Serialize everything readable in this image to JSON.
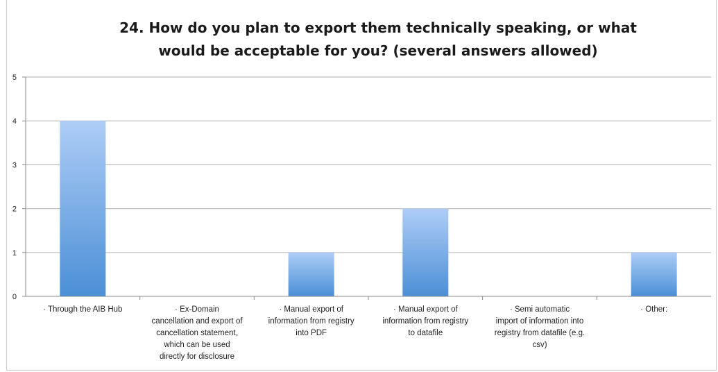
{
  "chart_data": {
    "type": "bar",
    "title_lines": [
      "24.  How do you plan to export them technically speaking, or what",
      "would be acceptable for you? (several answers allowed)"
    ],
    "categories": [
      [
        "·     Through the AIB Hub"
      ],
      [
        "·          Ex-Domain",
        "cancellation and export of",
        "cancellation statement,",
        "which can be used",
        "directly for disclosure"
      ],
      [
        "·         Manual export of",
        "information from registry",
        "into PDF"
      ],
      [
        "·         Manual export of",
        "information from registry",
        "to datafile"
      ],
      [
        "·         Semi automatic",
        "import of information into",
        "registry from datafile (e.g.",
        "csv)"
      ],
      [
        "·          Other:"
      ]
    ],
    "values": [
      4,
      0,
      1,
      2,
      0,
      1
    ],
    "ylim": [
      0,
      5
    ],
    "yticks": [
      "0",
      "1",
      "2",
      "3",
      "4",
      "5"
    ],
    "grid": true,
    "legend": "none",
    "colors": {
      "bar_top": "#aecdf6",
      "bar_bottom": "#4b8fd6",
      "grid": "#bdbdbd",
      "axis": "#888888"
    }
  }
}
